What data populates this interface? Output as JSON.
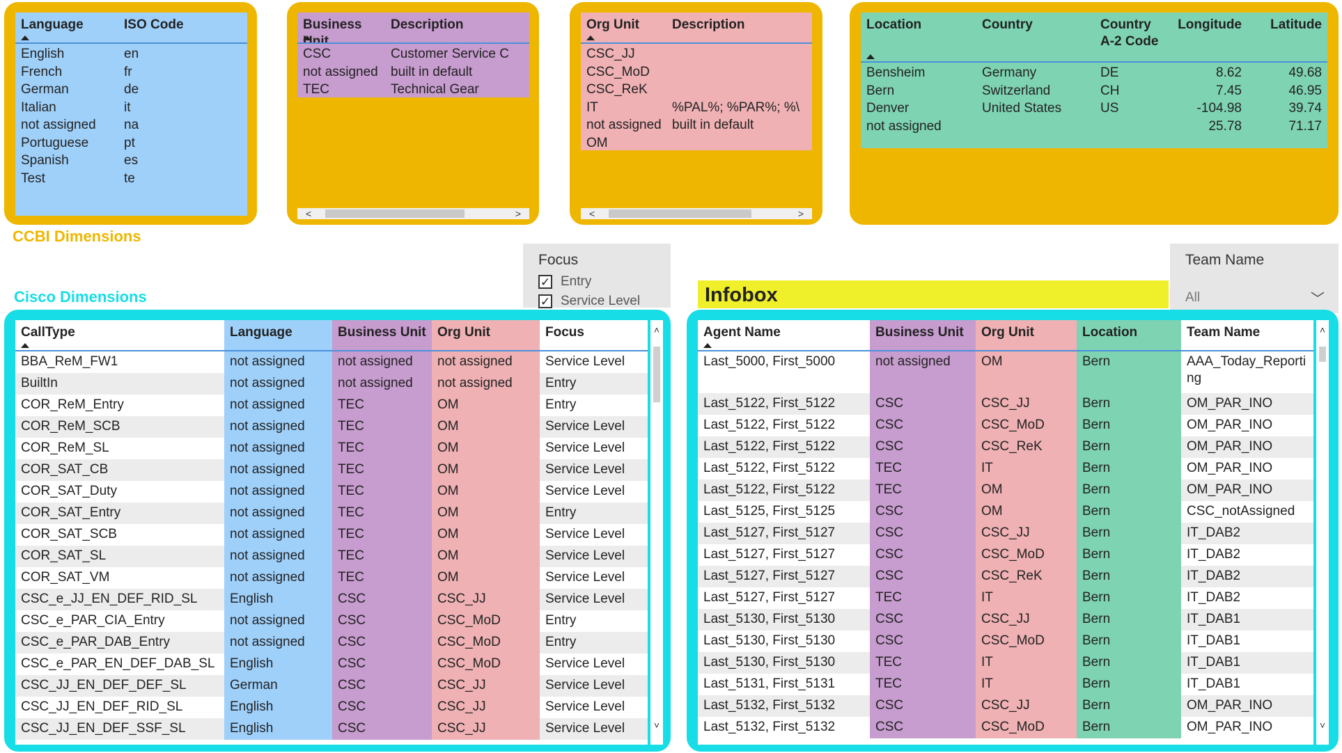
{
  "language_table": {
    "headers": [
      "Language",
      "ISO Code"
    ],
    "rows": [
      [
        "English",
        "en"
      ],
      [
        "French",
        "fr"
      ],
      [
        "German",
        "de"
      ],
      [
        "Italian",
        "it"
      ],
      [
        "not assigned",
        "na"
      ],
      [
        "Portuguese",
        "pt"
      ],
      [
        "Spanish",
        "es"
      ],
      [
        "Test",
        "te"
      ]
    ]
  },
  "business_unit_table": {
    "headers": [
      "Business Unit",
      "Description"
    ],
    "rows": [
      [
        "CSC",
        "Customer Service C"
      ],
      [
        "not assigned",
        "built in default"
      ],
      [
        "TEC",
        "Technical Gear"
      ]
    ],
    "scroll_left": "<",
    "scroll_right": ">"
  },
  "org_unit_table": {
    "headers": [
      "Org Unit",
      "Description"
    ],
    "rows": [
      [
        "CSC_JJ",
        ""
      ],
      [
        "CSC_MoD",
        ""
      ],
      [
        "CSC_ReK",
        ""
      ],
      [
        "IT",
        "%PAL%; %PAR%; %\\"
      ],
      [
        "not assigned",
        "built in default"
      ],
      [
        "OM",
        ""
      ]
    ],
    "scroll_left": "<",
    "scroll_right": ">"
  },
  "location_table": {
    "headers": [
      "Location",
      "Country",
      "Country A-2 Code",
      "Longitude",
      "Latitude"
    ],
    "rows": [
      [
        "Bensheim",
        "Germany",
        "DE",
        "8.62",
        "49.68"
      ],
      [
        "Bern",
        "Switzerland",
        "CH",
        "7.45",
        "46.95"
      ],
      [
        "Denver",
        "United States",
        "US",
        "-104.98",
        "39.74"
      ],
      [
        "not assigned",
        "",
        "",
        "25.78",
        "71.17"
      ]
    ]
  },
  "section_titles": {
    "ccbi": "CCBI Dimensions",
    "cisco": "Cisco Dimensions",
    "infobox": "Infobox"
  },
  "colors": {
    "gold": "#efb600",
    "cyan": "#17dde6",
    "ccbi_title": "#efb600",
    "cisco_title": "#17dde6",
    "infobox_bg": "#f0f02a"
  },
  "focus_slicer": {
    "label": "Focus",
    "options": [
      {
        "label": "Entry",
        "checked": true
      },
      {
        "label": "Service Level",
        "checked": true
      }
    ],
    "check_glyph": "✓"
  },
  "team_slicer": {
    "label": "Team Name",
    "value": "All",
    "chevron": "﹀"
  },
  "calltype_table": {
    "headers": [
      "CallType",
      "Language",
      "Business Unit",
      "Org Unit",
      "Focus"
    ],
    "rows": [
      [
        "BBA_ReM_FW1",
        "not assigned",
        "not assigned",
        "not assigned",
        "Service Level"
      ],
      [
        "BuiltIn",
        "not assigned",
        "not assigned",
        "not assigned",
        "Entry"
      ],
      [
        "COR_ReM_Entry",
        "not assigned",
        "TEC",
        "OM",
        "Entry"
      ],
      [
        "COR_ReM_SCB",
        "not assigned",
        "TEC",
        "OM",
        "Service Level"
      ],
      [
        "COR_ReM_SL",
        "not assigned",
        "TEC",
        "OM",
        "Service Level"
      ],
      [
        "COR_SAT_CB",
        "not assigned",
        "TEC",
        "OM",
        "Service Level"
      ],
      [
        "COR_SAT_Duty",
        "not assigned",
        "TEC",
        "OM",
        "Service Level"
      ],
      [
        "COR_SAT_Entry",
        "not assigned",
        "TEC",
        "OM",
        "Entry"
      ],
      [
        "COR_SAT_SCB",
        "not assigned",
        "TEC",
        "OM",
        "Service Level"
      ],
      [
        "COR_SAT_SL",
        "not assigned",
        "TEC",
        "OM",
        "Service Level"
      ],
      [
        "COR_SAT_VM",
        "not assigned",
        "TEC",
        "OM",
        "Service Level"
      ],
      [
        "CSC_e_JJ_EN_DEF_RID_SL",
        "English",
        "CSC",
        "CSC_JJ",
        "Service Level"
      ],
      [
        "CSC_e_PAR_CIA_Entry",
        "not assigned",
        "CSC",
        "CSC_MoD",
        "Entry"
      ],
      [
        "CSC_e_PAR_DAB_Entry",
        "not assigned",
        "CSC",
        "CSC_MoD",
        "Entry"
      ],
      [
        "CSC_e_PAR_EN_DEF_DAB_SL",
        "English",
        "CSC",
        "CSC_MoD",
        "Service Level"
      ],
      [
        "CSC_JJ_EN_DEF_DEF_SL",
        "German",
        "CSC",
        "CSC_JJ",
        "Service Level"
      ],
      [
        "CSC_JJ_EN_DEF_RID_SL",
        "English",
        "CSC",
        "CSC_JJ",
        "Service Level"
      ],
      [
        "CSC_JJ_EN_DEF_SSF_SL",
        "English",
        "CSC",
        "CSC_JJ",
        "Service Level"
      ]
    ],
    "scroll_up": "˄",
    "scroll_down": "˅"
  },
  "agent_table": {
    "headers": [
      "Agent Name",
      "Business Unit",
      "Org Unit",
      "Location",
      "Team Name"
    ],
    "rows": [
      [
        "Last_5000, First_5000",
        "not assigned",
        "OM",
        "Bern",
        "AAA_Today_Reporting"
      ],
      [
        "Last_5122, First_5122",
        "CSC",
        "CSC_JJ",
        "Bern",
        "OM_PAR_INO"
      ],
      [
        "Last_5122, First_5122",
        "CSC",
        "CSC_MoD",
        "Bern",
        "OM_PAR_INO"
      ],
      [
        "Last_5122, First_5122",
        "CSC",
        "CSC_ReK",
        "Bern",
        "OM_PAR_INO"
      ],
      [
        "Last_5122, First_5122",
        "TEC",
        "IT",
        "Bern",
        "OM_PAR_INO"
      ],
      [
        "Last_5122, First_5122",
        "TEC",
        "OM",
        "Bern",
        "OM_PAR_INO"
      ],
      [
        "Last_5125, First_5125",
        "CSC",
        "OM",
        "Bern",
        "CSC_notAssigned"
      ],
      [
        "Last_5127, First_5127",
        "CSC",
        "CSC_JJ",
        "Bern",
        "IT_DAB2"
      ],
      [
        "Last_5127, First_5127",
        "CSC",
        "CSC_MoD",
        "Bern",
        "IT_DAB2"
      ],
      [
        "Last_5127, First_5127",
        "CSC",
        "CSC_ReK",
        "Bern",
        "IT_DAB2"
      ],
      [
        "Last_5127, First_5127",
        "TEC",
        "IT",
        "Bern",
        "IT_DAB2"
      ],
      [
        "Last_5130, First_5130",
        "CSC",
        "CSC_JJ",
        "Bern",
        "IT_DAB1"
      ],
      [
        "Last_5130, First_5130",
        "CSC",
        "CSC_MoD",
        "Bern",
        "IT_DAB1"
      ],
      [
        "Last_5130, First_5130",
        "TEC",
        "IT",
        "Bern",
        "IT_DAB1"
      ],
      [
        "Last_5131, First_5131",
        "TEC",
        "IT",
        "Bern",
        "IT_DAB1"
      ],
      [
        "Last_5132, First_5132",
        "CSC",
        "CSC_JJ",
        "Bern",
        "OM_PAR_INO"
      ],
      [
        "Last_5132, First_5132",
        "CSC",
        "CSC_MoD",
        "Bern",
        "OM_PAR_INO"
      ]
    ],
    "scroll_up": "˄",
    "scroll_down": "˅"
  }
}
